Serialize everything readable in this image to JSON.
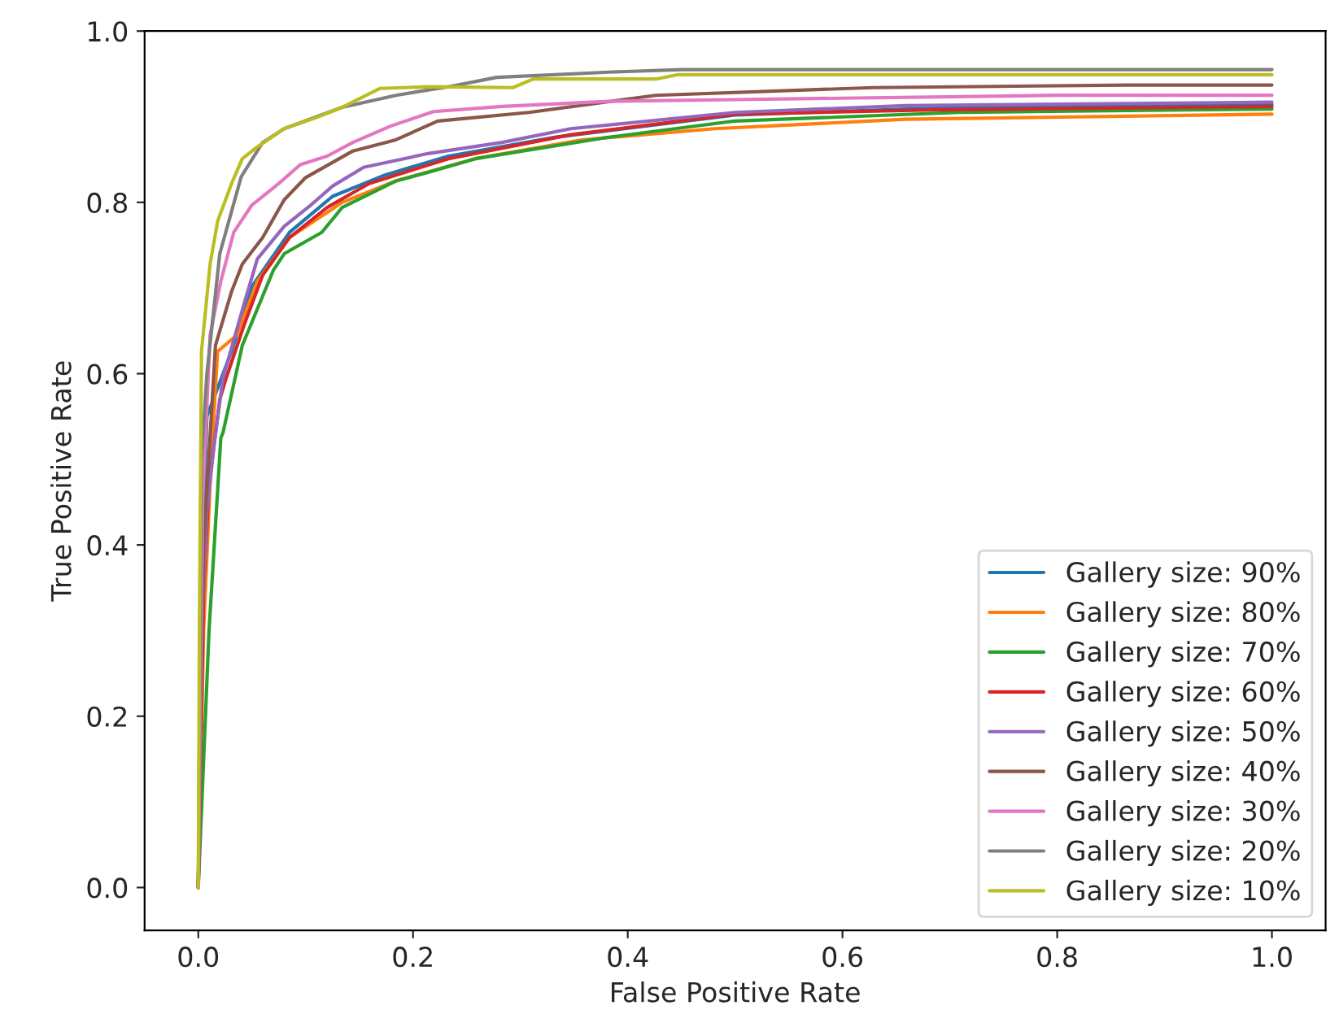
{
  "chart_data": {
    "type": "line",
    "xlabel": "False Positive Rate",
    "ylabel": "True Positive Rate",
    "xlim": [
      -0.05,
      1.05
    ],
    "ylim": [
      -0.05,
      1.0
    ],
    "xticks": [
      {
        "value": 0.0,
        "label": "0.0"
      },
      {
        "value": 0.2,
        "label": "0.2"
      },
      {
        "value": 0.4,
        "label": "0.4"
      },
      {
        "value": 0.6,
        "label": "0.6"
      },
      {
        "value": 0.8,
        "label": "0.8"
      },
      {
        "value": 1.0,
        "label": "1.0"
      }
    ],
    "yticks": [
      {
        "value": 0.0,
        "label": "0.0"
      },
      {
        "value": 0.2,
        "label": "0.2"
      },
      {
        "value": 0.4,
        "label": "0.4"
      },
      {
        "value": 0.6,
        "label": "0.6"
      },
      {
        "value": 0.8,
        "label": "0.8"
      },
      {
        "value": 1.0,
        "label": "1.0"
      }
    ],
    "grid": false,
    "legend": "bottom right",
    "line_style": "solid",
    "marker": "none",
    "series": [
      {
        "name": "Gallery size: 90%",
        "color": "#1f77b4",
        "x": [
          0,
          0.003,
          0.008,
          0.031,
          0.05,
          0.085,
          0.125,
          0.174,
          0.233,
          0.332,
          0.5,
          0.708,
          1.0
        ],
        "values": [
          0,
          0.35,
          0.55,
          0.626,
          0.702,
          0.765,
          0.807,
          0.832,
          0.854,
          0.876,
          0.902,
          0.911,
          0.914
        ]
      },
      {
        "name": "Gallery size: 80%",
        "color": "#ff7f0e",
        "x": [
          0,
          0.005,
          0.012,
          0.018,
          0.036,
          0.055,
          0.085,
          0.134,
          0.184,
          0.258,
          0.357,
          0.481,
          0.659,
          1.0
        ],
        "values": [
          0,
          0.3,
          0.5,
          0.626,
          0.645,
          0.708,
          0.759,
          0.8,
          0.825,
          0.851,
          0.873,
          0.886,
          0.897,
          0.903
        ]
      },
      {
        "name": "Gallery size: 70%",
        "color": "#2ca02c",
        "x": [
          0,
          0.01,
          0.021,
          0.023,
          0.041,
          0.07,
          0.08,
          0.115,
          0.134,
          0.184,
          0.214,
          0.258,
          0.382,
          0.5,
          0.708,
          1.0
        ],
        "values": [
          0,
          0.3,
          0.525,
          0.531,
          0.633,
          0.721,
          0.74,
          0.765,
          0.794,
          0.825,
          0.835,
          0.851,
          0.876,
          0.895,
          0.905,
          0.909
        ]
      },
      {
        "name": "Gallery size: 60%",
        "color": "#d62728",
        "x": [
          0,
          0.005,
          0.01,
          0.02,
          0.026,
          0.043,
          0.06,
          0.085,
          0.12,
          0.159,
          0.233,
          0.347,
          0.5,
          0.683,
          1.0
        ],
        "values": [
          0,
          0.35,
          0.47,
          0.57,
          0.595,
          0.658,
          0.715,
          0.759,
          0.794,
          0.822,
          0.851,
          0.879,
          0.903,
          0.908,
          0.912
        ]
      },
      {
        "name": "Gallery size: 50%",
        "color": "#9467bd",
        "x": [
          0,
          0.003,
          0.008,
          0.015,
          0.023,
          0.043,
          0.055,
          0.08,
          0.105,
          0.125,
          0.154,
          0.214,
          0.283,
          0.347,
          0.5,
          0.659,
          1.0
        ],
        "values": [
          0,
          0.3,
          0.44,
          0.52,
          0.595,
          0.683,
          0.734,
          0.772,
          0.797,
          0.819,
          0.841,
          0.857,
          0.87,
          0.886,
          0.905,
          0.913,
          0.917
        ]
      },
      {
        "name": "Gallery size: 40%",
        "color": "#8c564b",
        "x": [
          0,
          0.005,
          0.016,
          0.031,
          0.041,
          0.06,
          0.08,
          0.1,
          0.144,
          0.184,
          0.223,
          0.308,
          0.426,
          0.629,
          0.866,
          1.0
        ],
        "values": [
          0,
          0.4,
          0.633,
          0.696,
          0.728,
          0.759,
          0.803,
          0.829,
          0.86,
          0.873,
          0.895,
          0.905,
          0.925,
          0.934,
          0.937,
          0.937
        ]
      },
      {
        "name": "Gallery size: 30%",
        "color": "#e377c2",
        "x": [
          0,
          0.004,
          0.011,
          0.021,
          0.033,
          0.05,
          0.075,
          0.095,
          0.12,
          0.144,
          0.179,
          0.219,
          0.283,
          0.382,
          0.5,
          0.8,
          1.0
        ],
        "values": [
          0,
          0.45,
          0.645,
          0.708,
          0.765,
          0.797,
          0.822,
          0.844,
          0.854,
          0.87,
          0.889,
          0.906,
          0.912,
          0.918,
          0.92,
          0.925,
          0.925
        ]
      },
      {
        "name": "Gallery size: 20%",
        "color": "#7f7f7f",
        "x": [
          0,
          0.003,
          0.008,
          0.02,
          0.04,
          0.06,
          0.08,
          0.134,
          0.184,
          0.233,
          0.278,
          0.382,
          0.45,
          1.0
        ],
        "values": [
          0,
          0.5,
          0.6,
          0.74,
          0.83,
          0.87,
          0.886,
          0.911,
          0.925,
          0.935,
          0.946,
          0.952,
          0.955,
          0.955
        ]
      },
      {
        "name": "Gallery size: 10%",
        "color": "#bcbd22",
        "x": [
          0,
          0.001,
          0.003,
          0.011,
          0.018,
          0.031,
          0.041,
          0.053,
          0.08,
          0.11,
          0.134,
          0.169,
          0.214,
          0.293,
          0.312,
          0.426,
          0.446,
          1.0
        ],
        "values": [
          0,
          0.3,
          0.626,
          0.728,
          0.778,
          0.822,
          0.851,
          0.863,
          0.886,
          0.899,
          0.911,
          0.933,
          0.935,
          0.934,
          0.944,
          0.944,
          0.949,
          0.949
        ]
      }
    ]
  }
}
